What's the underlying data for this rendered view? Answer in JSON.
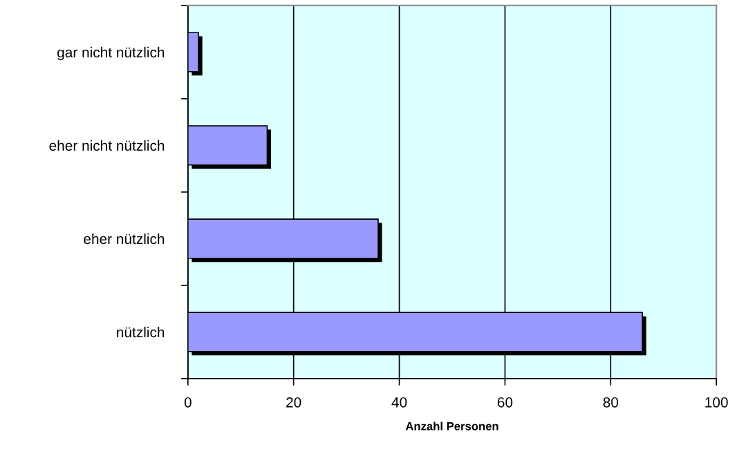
{
  "chart_data": {
    "type": "bar",
    "orientation": "horizontal",
    "xlabel": "Anzahl Personen",
    "categories": [
      "gar nicht nützlich",
      "eher nicht nützlich",
      "eher nützlich",
      "nützlich"
    ],
    "values": [
      2,
      15,
      36,
      86
    ],
    "color": "#9999ff",
    "xlim": [
      0,
      100
    ],
    "xticks": [
      0,
      20,
      40,
      60,
      80,
      100
    ],
    "grid": "x",
    "legend": false
  }
}
